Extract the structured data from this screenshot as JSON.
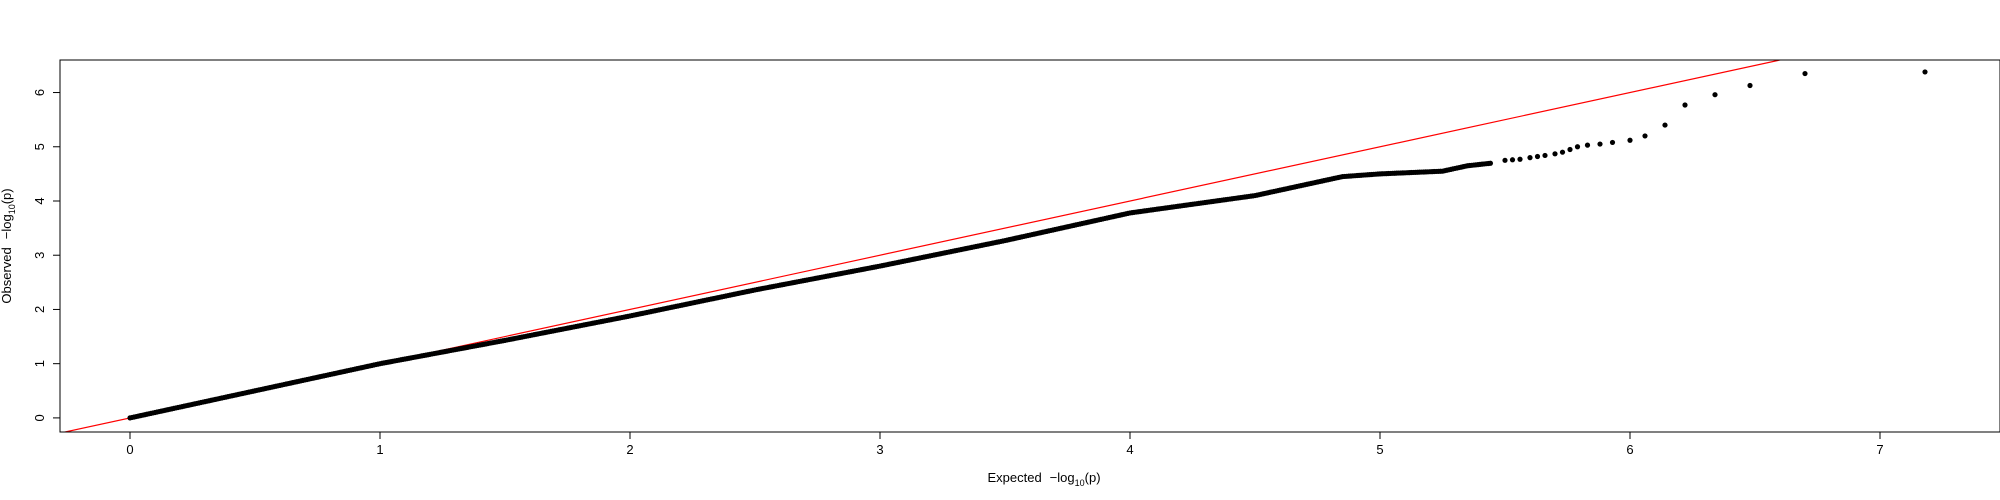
{
  "chart_data": {
    "type": "scatter",
    "title": "",
    "xlabel": {
      "prefix": "Expected",
      "func": "−log",
      "sub": "10",
      "arg": "(p)"
    },
    "ylabel": {
      "prefix": "Observed",
      "func": "−log",
      "sub": "10",
      "arg": "(p)"
    },
    "xlim": [
      -0.28,
      7.48
    ],
    "ylim": [
      -0.26,
      6.6
    ],
    "x_ticks": [
      0,
      1,
      2,
      3,
      4,
      5,
      6,
      7
    ],
    "x_tick_labels": [
      "0",
      "1",
      "2",
      "3",
      "4",
      "5",
      "6",
      "7"
    ],
    "y_ticks": [
      0,
      1,
      2,
      3,
      4,
      5,
      6
    ],
    "y_tick_labels": [
      "0",
      "1",
      "2",
      "3",
      "4",
      "5",
      "6"
    ],
    "grid": false,
    "legend": "none",
    "reference_line": {
      "intercept": 0,
      "slope": 1,
      "color": "#ff0000"
    },
    "point_color": "#000000",
    "series": [
      {
        "points": [
          [
            0.0,
            0.0
          ],
          [
            0.3,
            0.3
          ],
          [
            0.6,
            0.6
          ],
          [
            1.0,
            1.0
          ],
          [
            1.5,
            1.43
          ],
          [
            2.0,
            1.88
          ],
          [
            2.5,
            2.36
          ],
          [
            3.0,
            2.8
          ],
          [
            3.5,
            3.27
          ],
          [
            4.0,
            3.78
          ],
          [
            4.5,
            4.1
          ],
          [
            4.85,
            4.45
          ],
          [
            5.0,
            4.5
          ],
          [
            5.25,
            4.55
          ],
          [
            5.35,
            4.65
          ],
          [
            5.45,
            4.7
          ]
        ],
        "tail": [
          [
            5.5,
            4.75
          ],
          [
            5.53,
            4.76
          ],
          [
            5.56,
            4.77
          ],
          [
            5.6,
            4.8
          ],
          [
            5.63,
            4.82
          ],
          [
            5.66,
            4.84
          ],
          [
            5.7,
            4.87
          ],
          [
            5.73,
            4.9
          ],
          [
            5.76,
            4.95
          ],
          [
            5.79,
            5.0
          ],
          [
            5.83,
            5.03
          ],
          [
            5.88,
            5.05
          ],
          [
            5.93,
            5.08
          ],
          [
            6.0,
            5.12
          ],
          [
            6.06,
            5.2
          ],
          [
            6.14,
            5.4
          ],
          [
            6.22,
            5.77
          ],
          [
            6.34,
            5.96
          ],
          [
            6.48,
            6.13
          ],
          [
            6.7,
            6.35
          ],
          [
            7.18,
            6.38
          ]
        ]
      }
    ]
  }
}
